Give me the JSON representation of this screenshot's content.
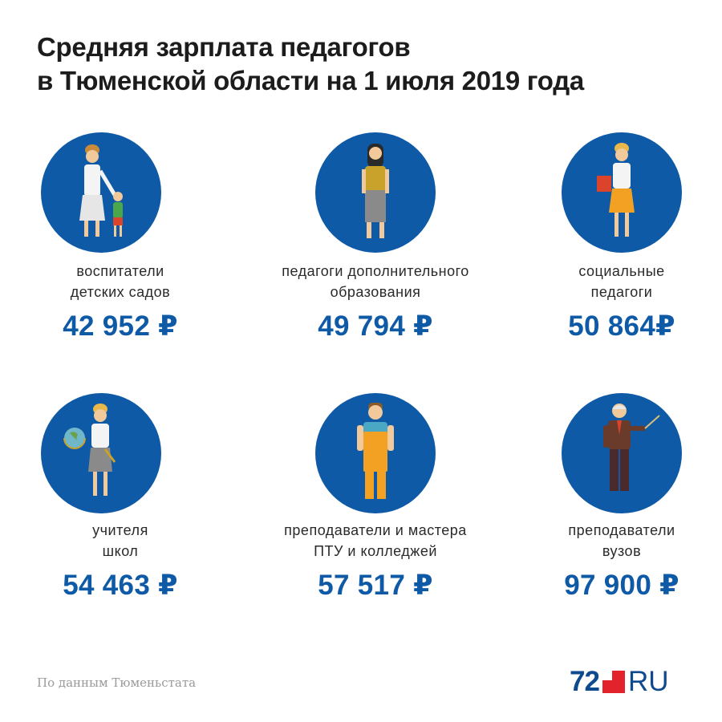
{
  "title": {
    "line1": "Средняя зарплата педагогов",
    "line2": "в Тюменской области на 1 июля 2019 года"
  },
  "cards": [
    {
      "label_line1": "воспитатели",
      "label_line2": "детских садов",
      "amount": "42 952 ₽",
      "icon": "kindergarten-teacher-icon"
    },
    {
      "label_line1": "педагоги дополнительного",
      "label_line2": "образования",
      "amount": "49 794 ₽",
      "icon": "additional-education-teacher-icon"
    },
    {
      "label_line1": "социальные",
      "label_line2": "педагоги",
      "amount": "50 864₽",
      "icon": "social-teacher-icon"
    },
    {
      "label_line1": "учителя",
      "label_line2": "школ",
      "amount": "54 463 ₽",
      "icon": "school-teacher-icon"
    },
    {
      "label_line1": "преподаватели и мастера",
      "label_line2": "ПТУ и колледжей",
      "amount": "57 517 ₽",
      "icon": "college-master-icon"
    },
    {
      "label_line1": "преподаватели",
      "label_line2": "вузов",
      "amount": "97 900 ₽",
      "icon": "university-professor-icon"
    }
  ],
  "source": "По данным Тюменьстата",
  "logo": {
    "number": "72",
    "suffix": "RU"
  },
  "colors": {
    "accent": "#0f5aa6",
    "logo_red": "#e3232b",
    "logo_blue": "#0f4a8f"
  }
}
